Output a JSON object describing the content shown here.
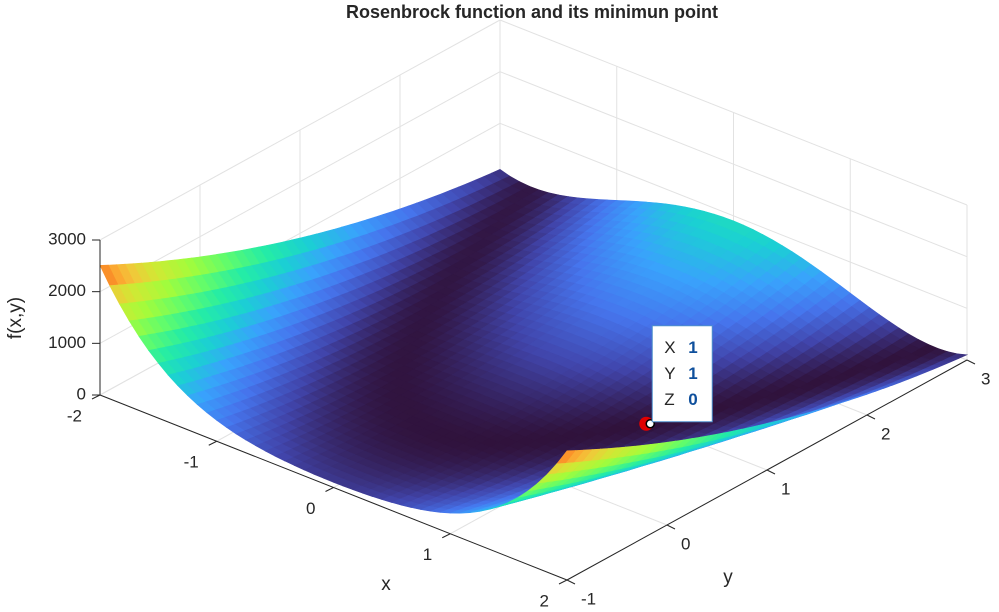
{
  "chart_data": {
    "type": "surface",
    "title": "Rosenbrock function and its minimun point",
    "xlabel": "x",
    "ylabel": "y",
    "zlabel": "f(x,y)",
    "xlim": [
      -2,
      2
    ],
    "ylim": [
      -1,
      3
    ],
    "zlim": [
      0,
      3000
    ],
    "xticks": [
      -2,
      -1,
      0,
      1,
      2
    ],
    "yticks": [
      -1,
      0,
      1,
      2,
      3
    ],
    "zticks": [
      0,
      1000,
      2000,
      3000
    ],
    "grid": true,
    "datatip": {
      "labels": [
        "X",
        "Y",
        "Z"
      ],
      "x": 1,
      "y": 1,
      "z": 0
    }
  }
}
